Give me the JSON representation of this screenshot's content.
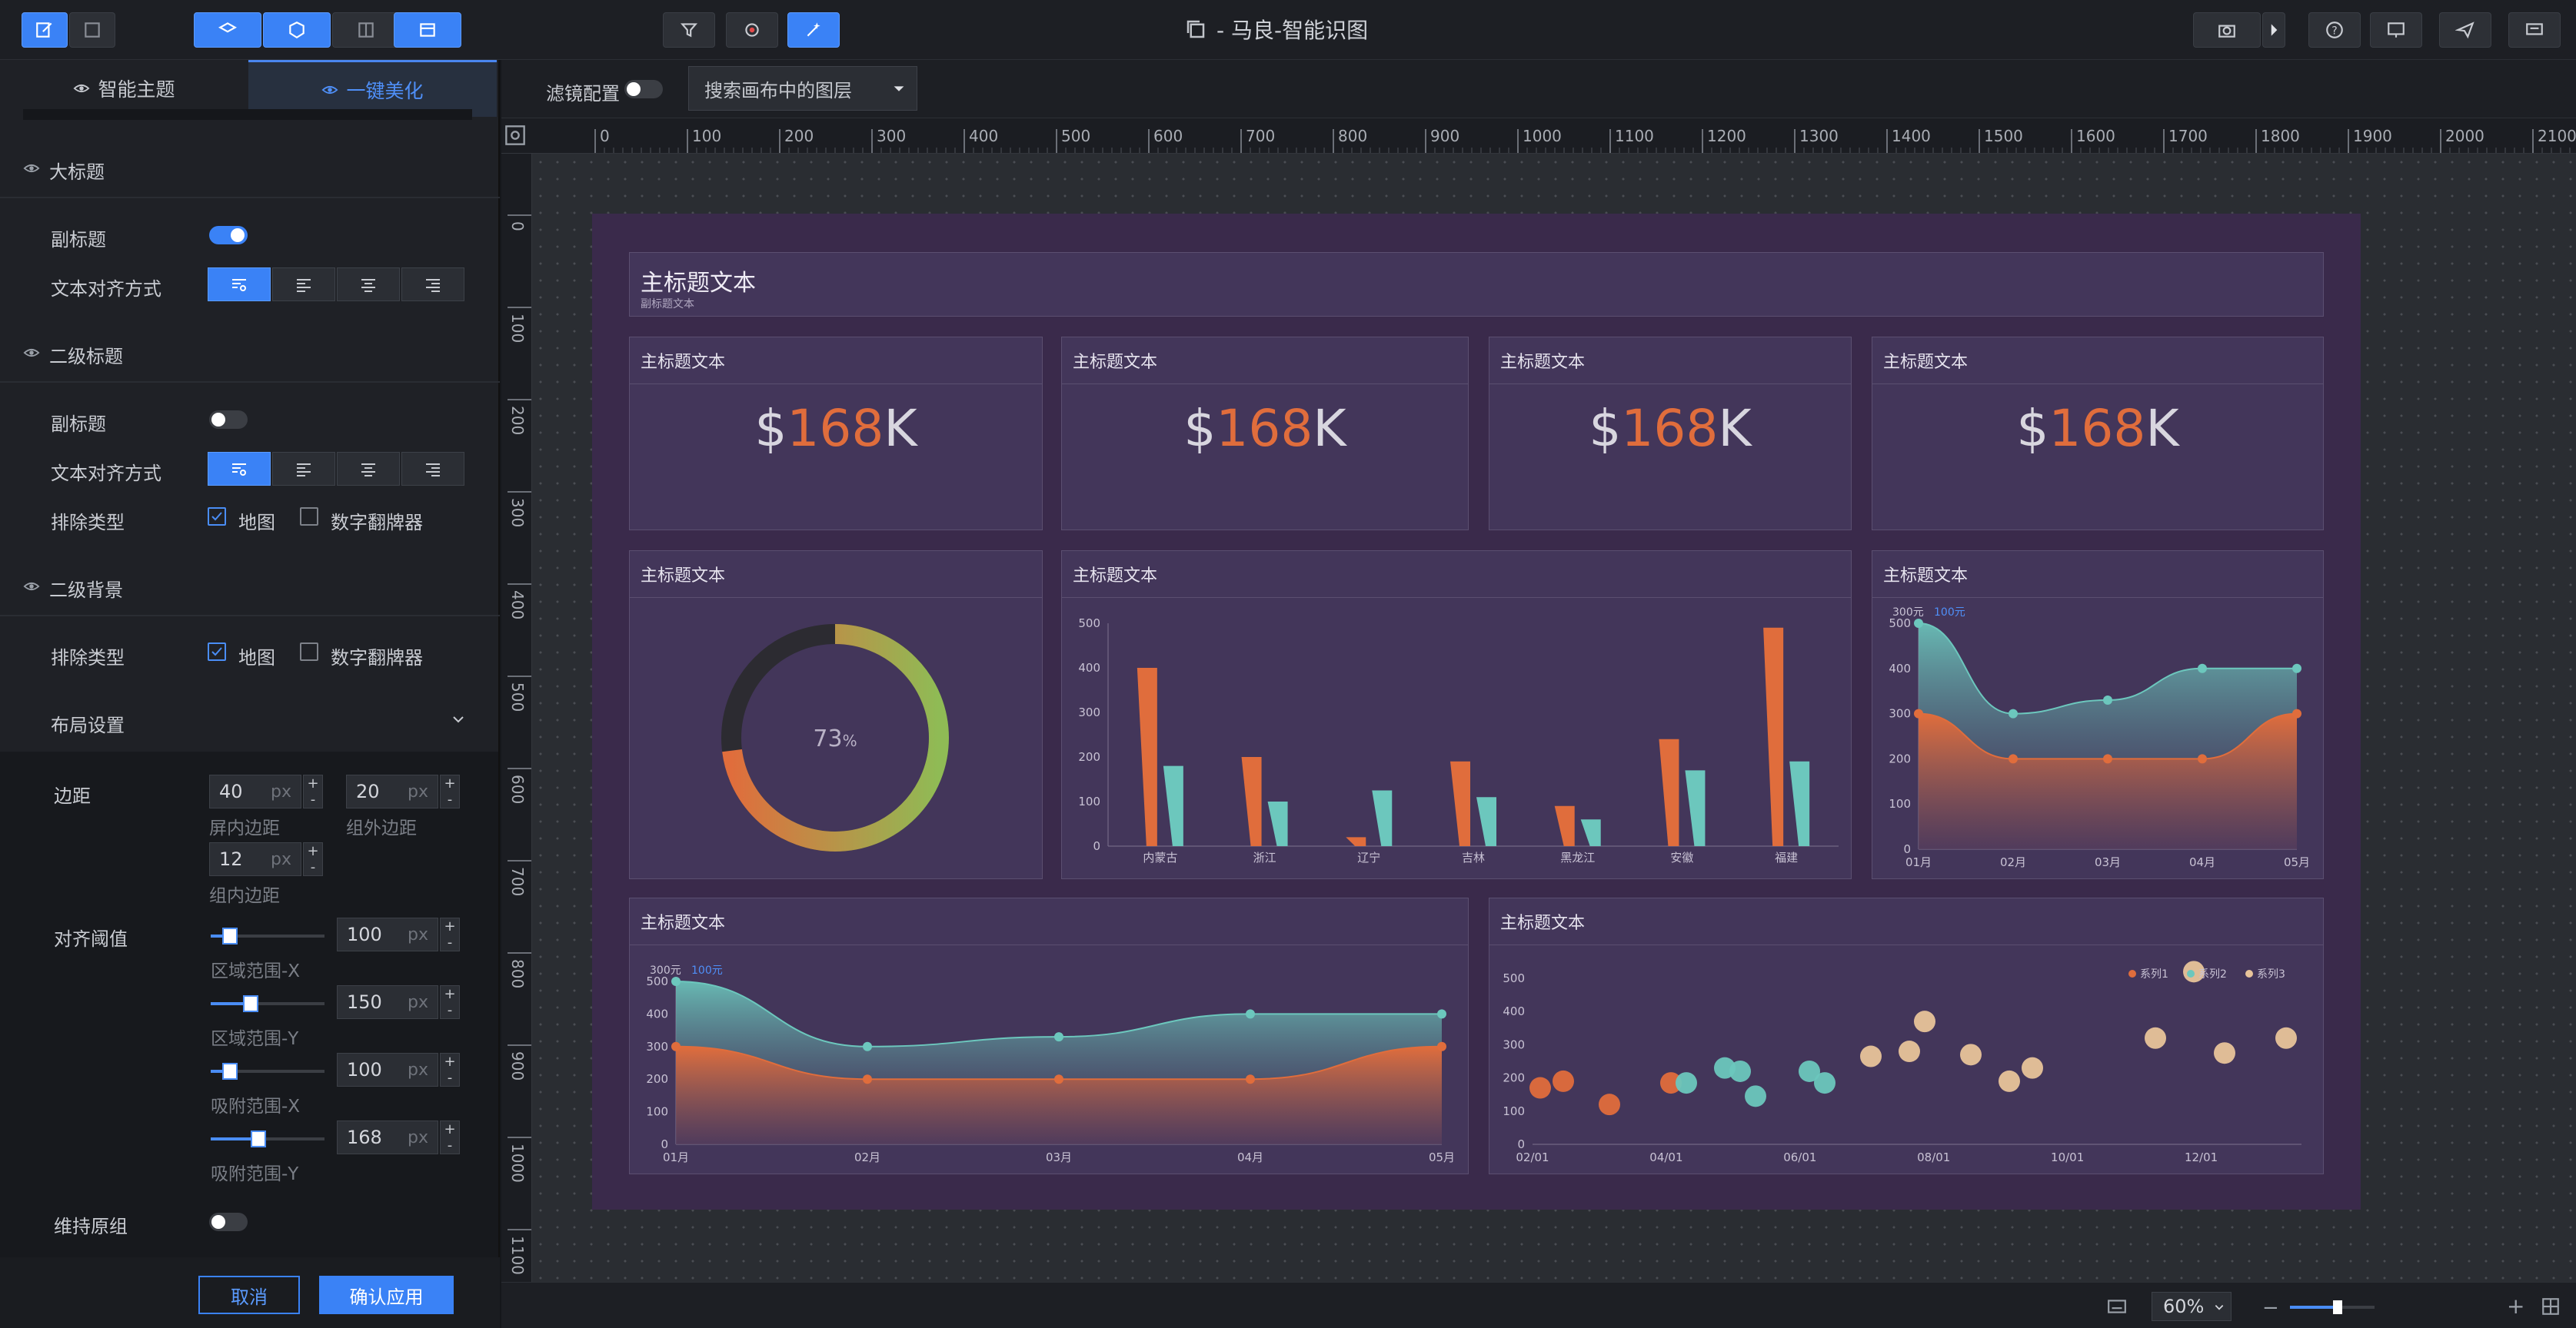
{
  "app": {
    "title": "- 马良-智能识图"
  },
  "left": {
    "tabs": [
      {
        "label": "智能主题"
      },
      {
        "label": "一键美化"
      }
    ],
    "big_title": {
      "header": "大标题",
      "subtitle_label": "副标题",
      "align_label": "文本对齐方式"
    },
    "second_title": {
      "header": "二级标题",
      "subtitle_label": "副标题",
      "align_label": "文本对齐方式",
      "exclude_label": "排除类型",
      "opt_map": "地图",
      "opt_flip": "数字翻牌器"
    },
    "second_bg": {
      "header": "二级背景",
      "exclude_label": "排除类型",
      "opt_map": "地图",
      "opt_flip": "数字翻牌器"
    },
    "layout": {
      "header": "布局设置",
      "margin_label": "边距",
      "screen_margin": {
        "value": "40",
        "unit": "px",
        "label": "屏内边距"
      },
      "group_outer": {
        "value": "20",
        "unit": "px",
        "label": "组外边距"
      },
      "group_inner": {
        "value": "12",
        "unit": "px",
        "label": "组内边距"
      },
      "align_label": "对齐阈值",
      "area_x": {
        "value": "100",
        "unit": "px",
        "label": "区域范围-X",
        "level": 0.17
      },
      "area_y": {
        "value": "150",
        "unit": "px",
        "label": "区域范围-Y",
        "level": 0.35
      },
      "snap_x": {
        "value": "100",
        "unit": "px",
        "label": "吸附范围-X",
        "level": 0.17
      },
      "snap_y": {
        "value": "168",
        "unit": "px",
        "label": "吸附范围-Y",
        "level": 0.42
      },
      "keep_label": "维持原组"
    },
    "cancel": "取消",
    "apply": "确认应用"
  },
  "toolbar2": {
    "filter_label": "滤镜配置",
    "search_placeholder": "搜索画布中的图层"
  },
  "ruler": {
    "h_ticks": [
      "0",
      "100",
      "200",
      "300",
      "400",
      "500",
      "600",
      "700",
      "800",
      "900",
      "1000",
      "1100",
      "1200",
      "1300",
      "1400",
      "1500",
      "1600",
      "1700",
      "1800",
      "1900",
      "2000",
      "2100"
    ],
    "v_ticks": [
      "0",
      "100",
      "200",
      "300",
      "400",
      "500",
      "600",
      "700",
      "800",
      "900",
      "1000",
      "1100"
    ]
  },
  "dashboard": {
    "main_title": "主标题文本",
    "main_subtitle": "副标题文本",
    "card_title": "主标题文本",
    "stat": {
      "prefix": "$",
      "value": "168",
      "suffix": "K"
    },
    "donut": {
      "value": "73",
      "unit": "%",
      "fraction": 0.73
    }
  },
  "status": {
    "zoom": "60%"
  },
  "chart_data": [
    {
      "type": "bar",
      "categories": [
        "内蒙古",
        "浙江",
        "辽宁",
        "吉林",
        "黑龙江",
        "安徽",
        "福建"
      ],
      "series": [
        {
          "values": [
            400,
            200,
            20,
            190,
            90,
            240,
            490
          ],
          "color": "#e06d3c"
        },
        {
          "values": [
            180,
            100,
            125,
            110,
            60,
            170,
            190
          ],
          "color": "#6cc7bd"
        }
      ],
      "yticks": [
        "0",
        "100",
        "200",
        "300",
        "400",
        "500"
      ],
      "ylim": [
        0,
        500
      ]
    },
    {
      "type": "area",
      "categories": [
        "01月",
        "02月",
        "03月",
        "04月",
        "05月"
      ],
      "legend": [
        "300元",
        "100元"
      ],
      "series": [
        {
          "values": [
            500,
            300,
            330,
            400,
            400
          ],
          "color": "#6cc7bd"
        },
        {
          "values": [
            300,
            200,
            200,
            200,
            300
          ],
          "color": "#e06d3c"
        }
      ],
      "yticks": [
        "0",
        "100",
        "200",
        "300",
        "400",
        "500"
      ],
      "ylim": [
        0,
        500
      ]
    },
    {
      "type": "scatter",
      "x_ticks": [
        "02/01",
        "04/01",
        "06/01",
        "08/01",
        "10/01",
        "12/01"
      ],
      "yticks": [
        "0",
        "100",
        "200",
        "300",
        "400",
        "500"
      ],
      "ylim": [
        0,
        500
      ],
      "legend": [
        "系列1",
        "系列2",
        "系列3"
      ],
      "series": [
        {
          "name": "系列1",
          "color": "#e06d3c",
          "points": [
            [
              0.01,
              170
            ],
            [
              0.04,
              190
            ],
            [
              0.1,
              120
            ],
            [
              0.18,
              185
            ]
          ]
        },
        {
          "name": "系列2",
          "color": "#6cc7bd",
          "points": [
            [
              0.2,
              185
            ],
            [
              0.25,
              230
            ],
            [
              0.27,
              220
            ],
            [
              0.29,
              145
            ],
            [
              0.36,
              220
            ],
            [
              0.38,
              185
            ]
          ]
        },
        {
          "name": "系列3",
          "color": "#e8c49a",
          "points": [
            [
              0.44,
              265
            ],
            [
              0.49,
              280
            ],
            [
              0.51,
              370
            ],
            [
              0.57,
              270
            ],
            [
              0.62,
              190
            ],
            [
              0.65,
              230
            ],
            [
              0.81,
              320
            ],
            [
              0.86,
              520
            ],
            [
              0.9,
              275
            ],
            [
              0.98,
              320
            ]
          ]
        }
      ]
    }
  ]
}
